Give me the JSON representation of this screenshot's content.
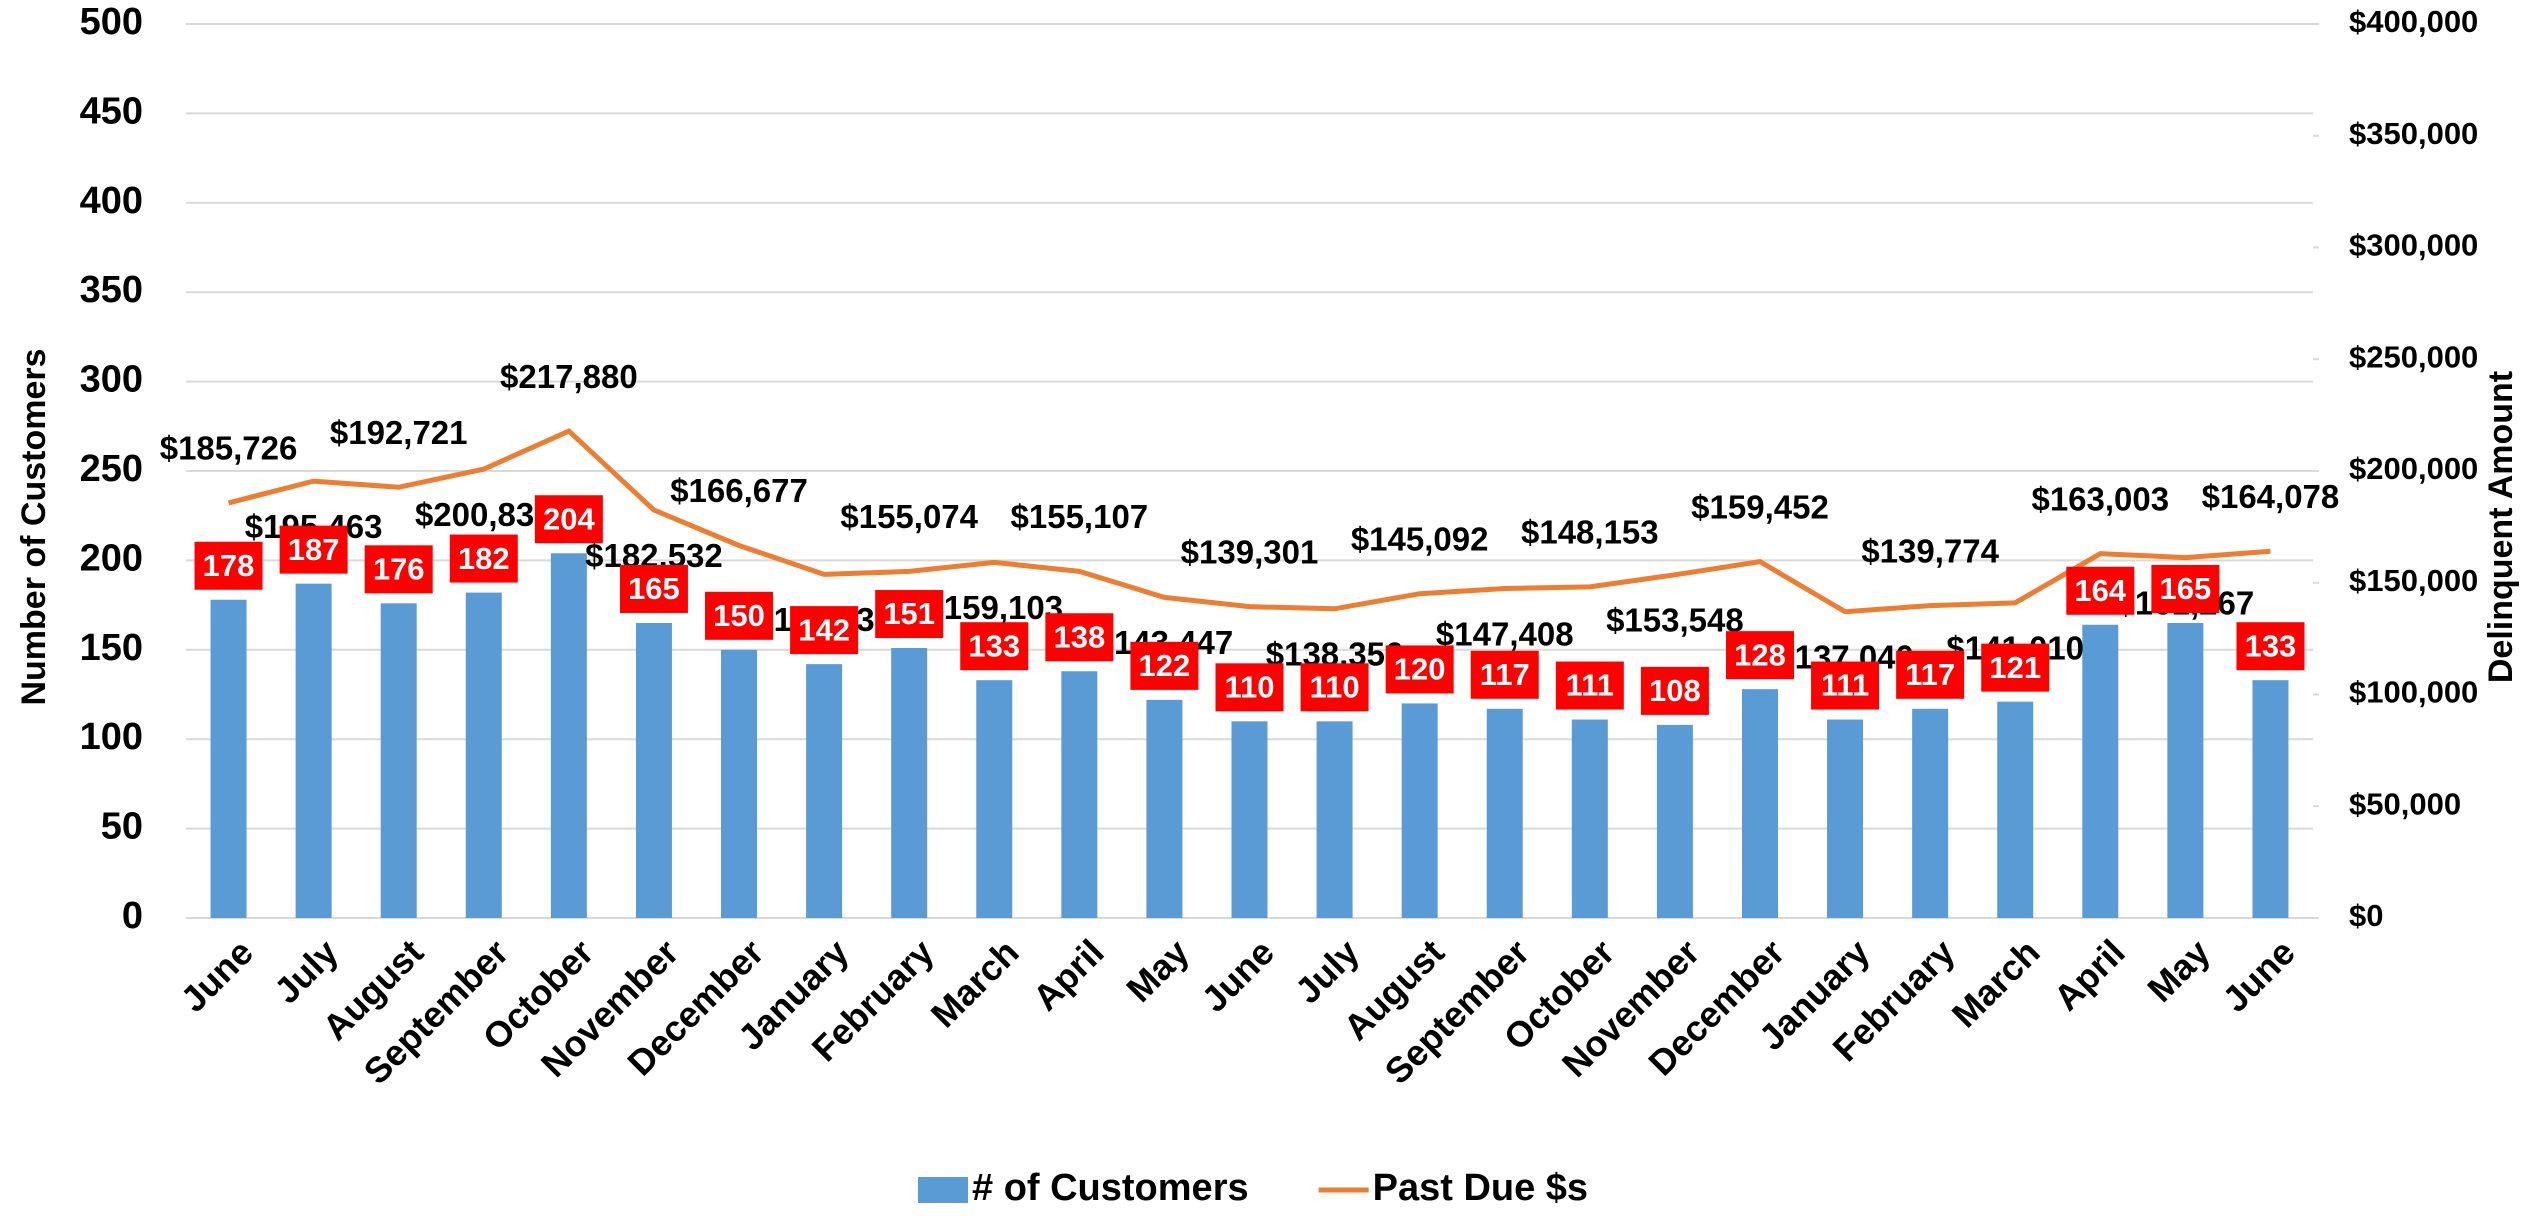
{
  "chart_data": {
    "type": "combo",
    "y_label": "Number of Customers",
    "y2_label": "Delinquent Amount",
    "categories": [
      "June",
      "July",
      "August",
      "September",
      "October",
      "November",
      "December",
      "January",
      "February",
      "March",
      "April",
      "May",
      "June",
      "July",
      "August",
      "September",
      "October",
      "November",
      "December",
      "January",
      "February",
      "March",
      "April",
      "May",
      "June"
    ],
    "series": [
      {
        "name": "# of Customers",
        "type": "bar",
        "color": "#5b9bd5",
        "label_color": "#ff0000",
        "values": [
          178,
          187,
          176,
          182,
          204,
          165,
          150,
          142,
          151,
          133,
          138,
          122,
          110,
          110,
          120,
          117,
          111,
          108,
          128,
          111,
          117,
          121,
          164,
          165,
          133
        ]
      },
      {
        "name": "Past Due $s",
        "type": "line",
        "color": "#ed7d31",
        "axis": "y2",
        "values": [
          185726,
          195463,
          192721,
          200838,
          217880,
          182532,
          166677,
          153738,
          155074,
          159103,
          155107,
          143447,
          139301,
          138356,
          145092,
          147408,
          148153,
          153548,
          159452,
          137040,
          139774,
          141010,
          163003,
          161267,
          164078
        ],
        "value_labels": [
          "$185,726",
          "$195,463",
          "$192,721",
          "$200,838",
          "$217,880",
          "$182,532",
          "$166,677",
          "$153,738",
          "$155,074",
          "$159,103",
          "$155,107",
          "$143,447",
          "$139,301",
          "$138,356",
          "$145,092",
          "$147,408",
          "$148,153",
          "$153,548",
          "$159,452",
          "$137,040",
          "$139,774",
          "$141,010",
          "$163,003",
          "$161,267",
          "$164,078"
        ]
      }
    ],
    "ylim": [
      0,
      500
    ],
    "yticks": [
      0,
      50,
      100,
      150,
      200,
      250,
      300,
      350,
      400,
      450,
      500
    ],
    "y2lim": [
      0,
      400000
    ],
    "y2ticks": [
      {
        "value": 0,
        "label": "$0"
      },
      {
        "value": 50000,
        "label": "$50,000"
      },
      {
        "value": 100000,
        "label": "$100,000"
      },
      {
        "value": 150000,
        "label": "$150,000"
      },
      {
        "value": 200000,
        "label": "$200,000"
      },
      {
        "value": 250000,
        "label": "$250,000"
      },
      {
        "value": 300000,
        "label": "$300,000"
      },
      {
        "value": 350000,
        "label": "$350,000"
      },
      {
        "value": 400000,
        "label": "$400,000"
      }
    ],
    "grid": true,
    "legend": "bottom"
  }
}
